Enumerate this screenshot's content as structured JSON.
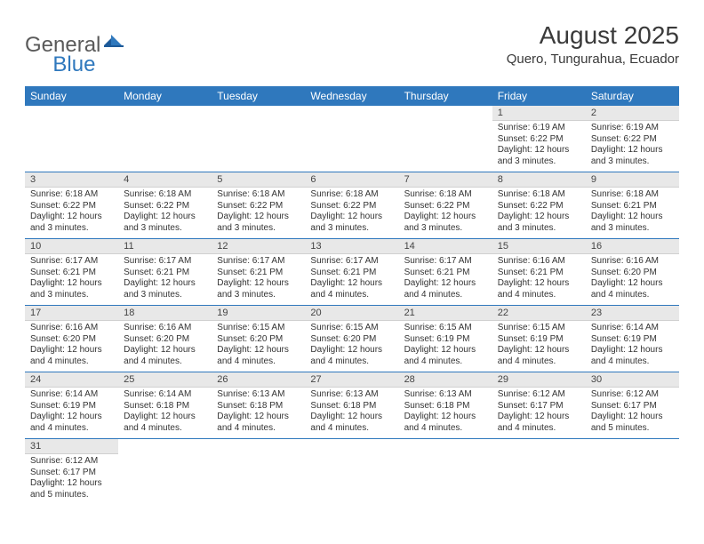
{
  "colors": {
    "header_bg": "#2f78bd",
    "header_text": "#ffffff",
    "daynum_bg": "#e8e8e8",
    "row_border": "#2f78bd",
    "body_text": "#333333",
    "title_text": "#3a3a3a",
    "logo_gray": "#5a5a5a",
    "logo_blue": "#2f78bd"
  },
  "logo": {
    "part1": "General",
    "part2": "Blue"
  },
  "title": "August 2025",
  "location": "Quero, Tungurahua, Ecuador",
  "weekdays": [
    "Sunday",
    "Monday",
    "Tuesday",
    "Wednesday",
    "Thursday",
    "Friday",
    "Saturday"
  ],
  "weeks": [
    [
      null,
      null,
      null,
      null,
      null,
      {
        "n": "1",
        "sr": "6:19 AM",
        "ss": "6:22 PM",
        "dl": "12 hours and 3 minutes."
      },
      {
        "n": "2",
        "sr": "6:19 AM",
        "ss": "6:22 PM",
        "dl": "12 hours and 3 minutes."
      }
    ],
    [
      {
        "n": "3",
        "sr": "6:18 AM",
        "ss": "6:22 PM",
        "dl": "12 hours and 3 minutes."
      },
      {
        "n": "4",
        "sr": "6:18 AM",
        "ss": "6:22 PM",
        "dl": "12 hours and 3 minutes."
      },
      {
        "n": "5",
        "sr": "6:18 AM",
        "ss": "6:22 PM",
        "dl": "12 hours and 3 minutes."
      },
      {
        "n": "6",
        "sr": "6:18 AM",
        "ss": "6:22 PM",
        "dl": "12 hours and 3 minutes."
      },
      {
        "n": "7",
        "sr": "6:18 AM",
        "ss": "6:22 PM",
        "dl": "12 hours and 3 minutes."
      },
      {
        "n": "8",
        "sr": "6:18 AM",
        "ss": "6:22 PM",
        "dl": "12 hours and 3 minutes."
      },
      {
        "n": "9",
        "sr": "6:18 AM",
        "ss": "6:21 PM",
        "dl": "12 hours and 3 minutes."
      }
    ],
    [
      {
        "n": "10",
        "sr": "6:17 AM",
        "ss": "6:21 PM",
        "dl": "12 hours and 3 minutes."
      },
      {
        "n": "11",
        "sr": "6:17 AM",
        "ss": "6:21 PM",
        "dl": "12 hours and 3 minutes."
      },
      {
        "n": "12",
        "sr": "6:17 AM",
        "ss": "6:21 PM",
        "dl": "12 hours and 3 minutes."
      },
      {
        "n": "13",
        "sr": "6:17 AM",
        "ss": "6:21 PM",
        "dl": "12 hours and 4 minutes."
      },
      {
        "n": "14",
        "sr": "6:17 AM",
        "ss": "6:21 PM",
        "dl": "12 hours and 4 minutes."
      },
      {
        "n": "15",
        "sr": "6:16 AM",
        "ss": "6:21 PM",
        "dl": "12 hours and 4 minutes."
      },
      {
        "n": "16",
        "sr": "6:16 AM",
        "ss": "6:20 PM",
        "dl": "12 hours and 4 minutes."
      }
    ],
    [
      {
        "n": "17",
        "sr": "6:16 AM",
        "ss": "6:20 PM",
        "dl": "12 hours and 4 minutes."
      },
      {
        "n": "18",
        "sr": "6:16 AM",
        "ss": "6:20 PM",
        "dl": "12 hours and 4 minutes."
      },
      {
        "n": "19",
        "sr": "6:15 AM",
        "ss": "6:20 PM",
        "dl": "12 hours and 4 minutes."
      },
      {
        "n": "20",
        "sr": "6:15 AM",
        "ss": "6:20 PM",
        "dl": "12 hours and 4 minutes."
      },
      {
        "n": "21",
        "sr": "6:15 AM",
        "ss": "6:19 PM",
        "dl": "12 hours and 4 minutes."
      },
      {
        "n": "22",
        "sr": "6:15 AM",
        "ss": "6:19 PM",
        "dl": "12 hours and 4 minutes."
      },
      {
        "n": "23",
        "sr": "6:14 AM",
        "ss": "6:19 PM",
        "dl": "12 hours and 4 minutes."
      }
    ],
    [
      {
        "n": "24",
        "sr": "6:14 AM",
        "ss": "6:19 PM",
        "dl": "12 hours and 4 minutes."
      },
      {
        "n": "25",
        "sr": "6:14 AM",
        "ss": "6:18 PM",
        "dl": "12 hours and 4 minutes."
      },
      {
        "n": "26",
        "sr": "6:13 AM",
        "ss": "6:18 PM",
        "dl": "12 hours and 4 minutes."
      },
      {
        "n": "27",
        "sr": "6:13 AM",
        "ss": "6:18 PM",
        "dl": "12 hours and 4 minutes."
      },
      {
        "n": "28",
        "sr": "6:13 AM",
        "ss": "6:18 PM",
        "dl": "12 hours and 4 minutes."
      },
      {
        "n": "29",
        "sr": "6:12 AM",
        "ss": "6:17 PM",
        "dl": "12 hours and 4 minutes."
      },
      {
        "n": "30",
        "sr": "6:12 AM",
        "ss": "6:17 PM",
        "dl": "12 hours and 5 minutes."
      }
    ],
    [
      {
        "n": "31",
        "sr": "6:12 AM",
        "ss": "6:17 PM",
        "dl": "12 hours and 5 minutes."
      },
      null,
      null,
      null,
      null,
      null,
      null
    ]
  ],
  "labels": {
    "sunrise": "Sunrise:",
    "sunset": "Sunset:",
    "daylight": "Daylight:"
  }
}
